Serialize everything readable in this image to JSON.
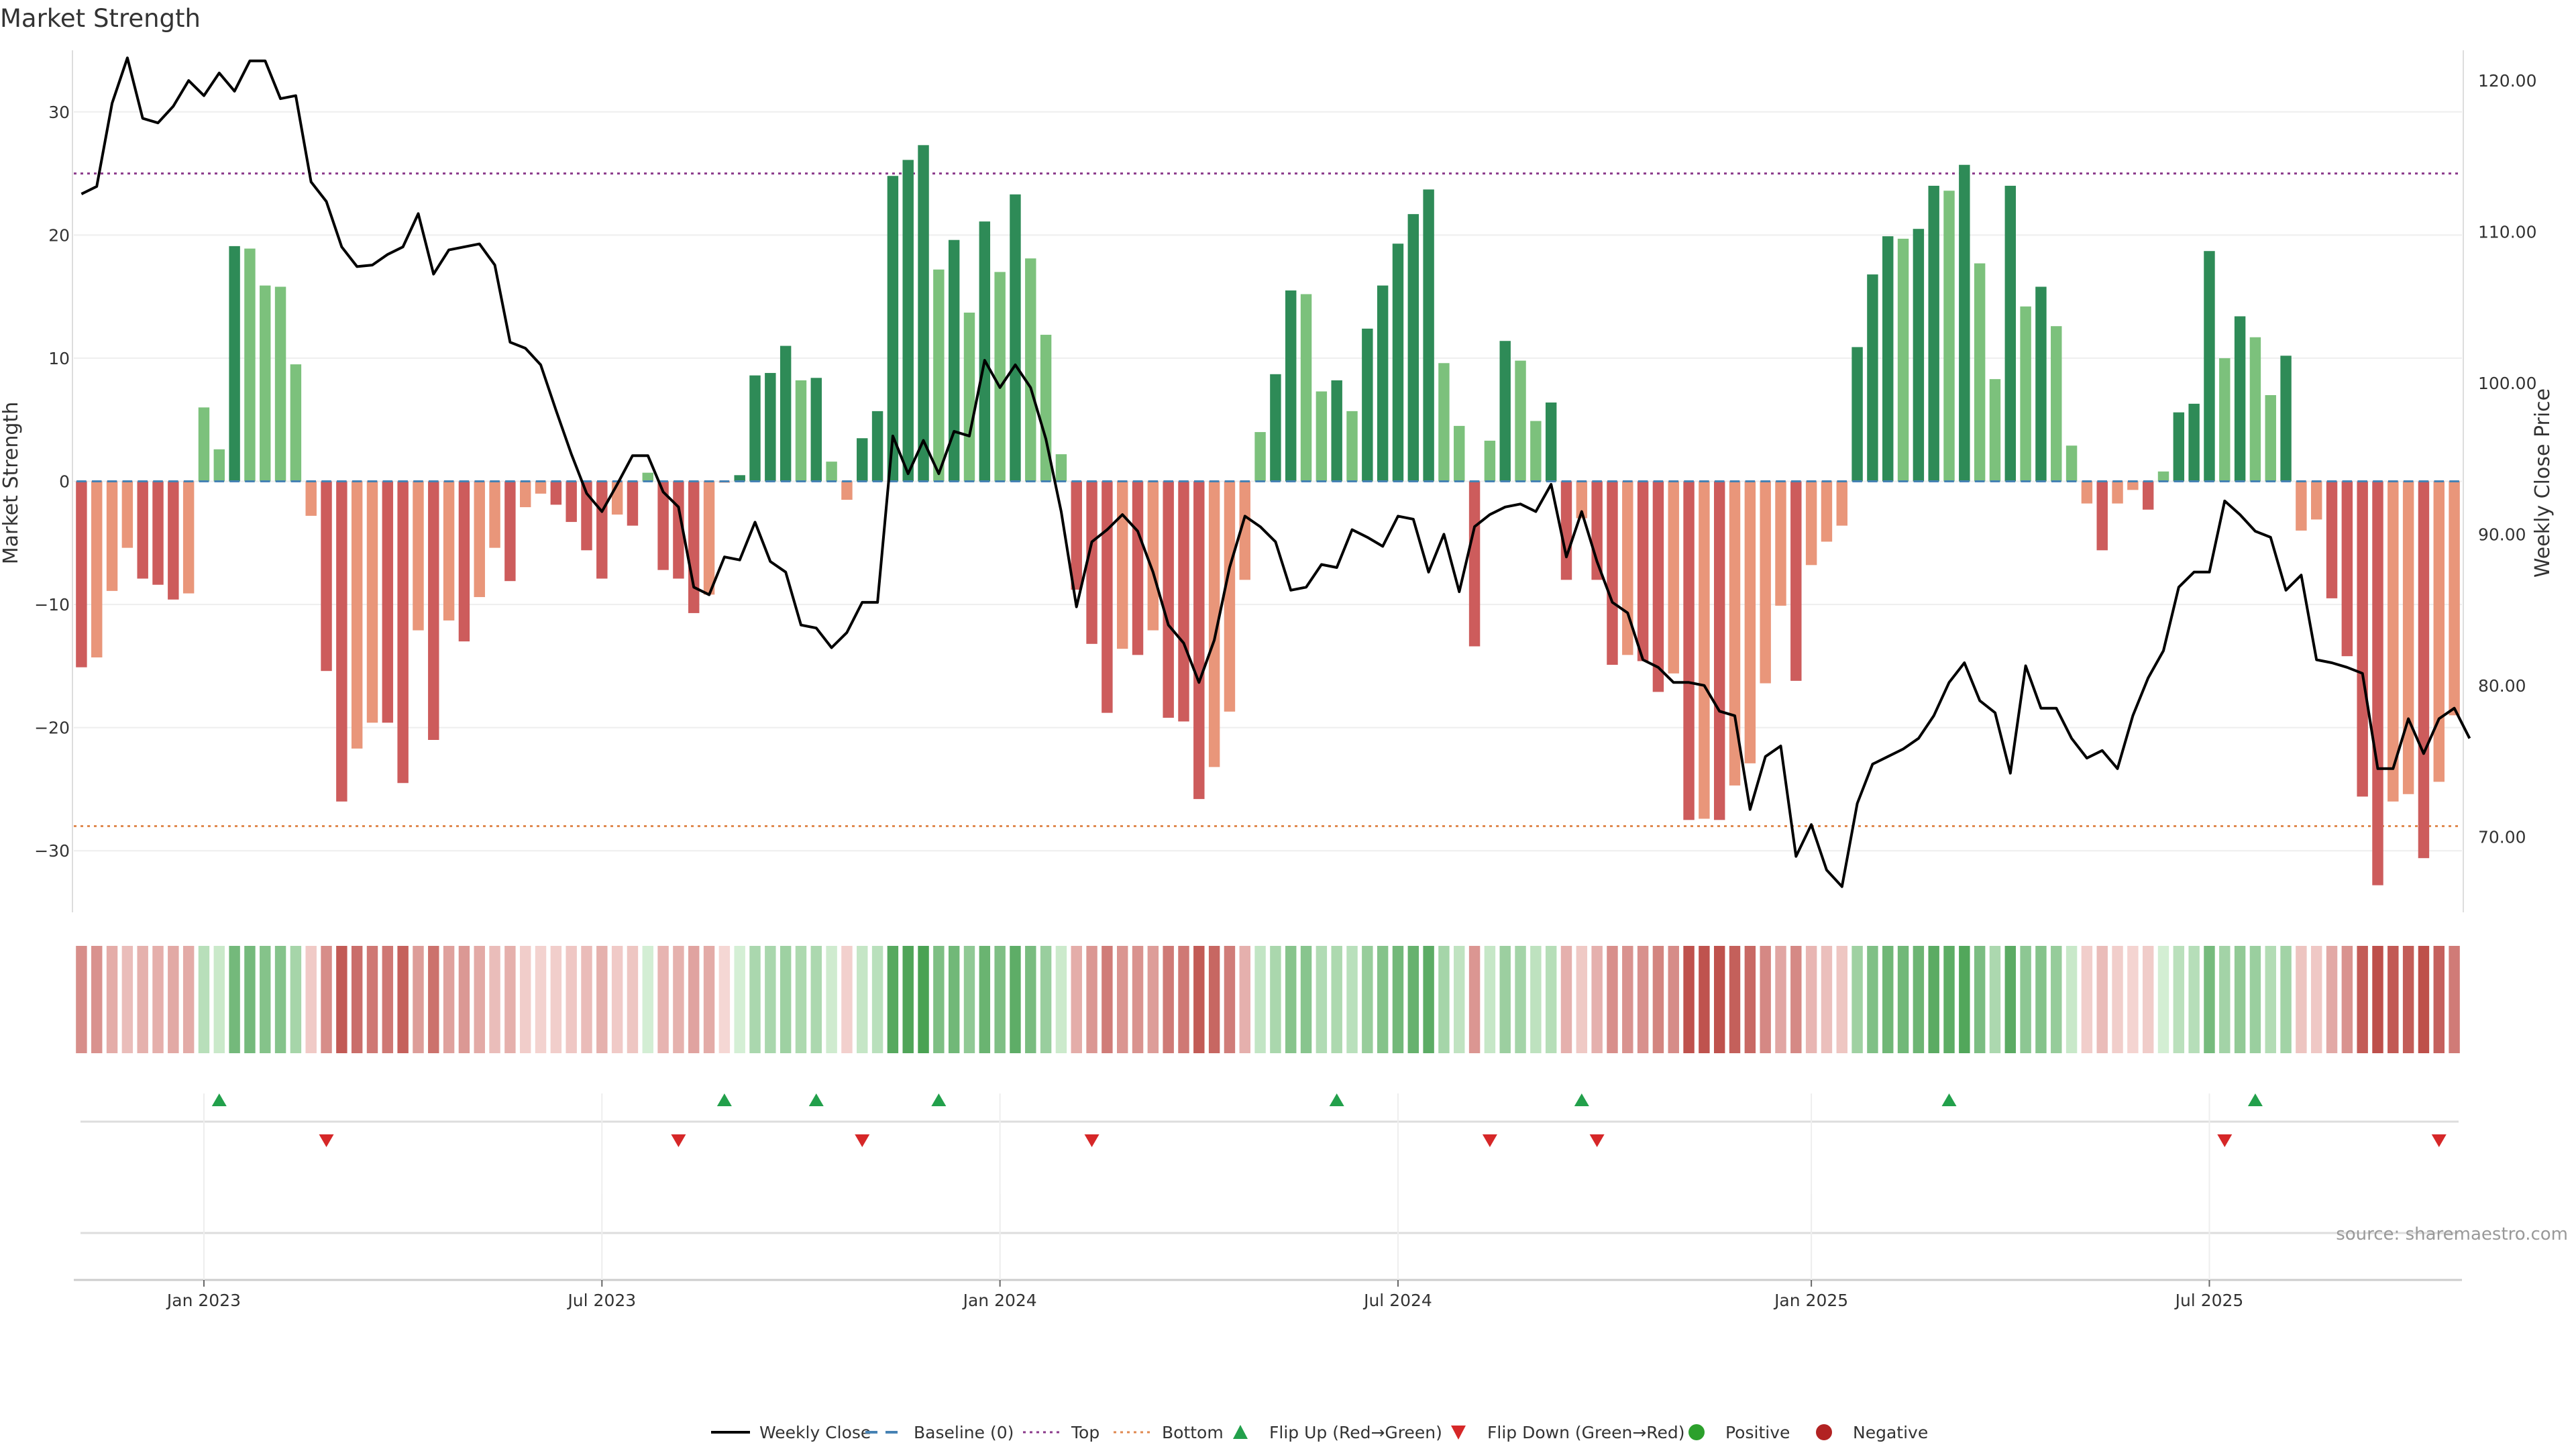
{
  "chart_data": {
    "type": "bar",
    "title": "Market Strength",
    "ylabel": "Market Strength",
    "y2label": "Weekly Close Price",
    "ylim": [
      -35,
      35
    ],
    "y2lim": [
      65,
      122
    ],
    "yticks": [
      30,
      20,
      10,
      0,
      -10,
      -20,
      -30
    ],
    "ytick_labels": [
      "30",
      "20",
      "10",
      "0",
      "−10",
      "−20",
      "−30"
    ],
    "y2ticks": [
      120,
      110,
      100,
      90,
      80,
      70
    ],
    "y2tick_labels": [
      "120.00",
      "110.00",
      "100.00",
      "90.00",
      "80.00",
      "70.00"
    ],
    "top_threshold": 25,
    "bottom_threshold": -28,
    "x_start": "2022-11-07",
    "x_end": "2025-10-27",
    "x_ticks": [
      {
        "label": "Jan 2023",
        "date": "2023-01-02"
      },
      {
        "label": "Jul 2023",
        "date": "2023-07-03"
      },
      {
        "label": "Jan 2024",
        "date": "2024-01-01"
      },
      {
        "label": "Jul 2024",
        "date": "2024-07-01"
      },
      {
        "label": "Jan 2025",
        "date": "2025-01-06"
      },
      {
        "label": "Jul 2025",
        "date": "2025-07-07"
      }
    ],
    "strength": [
      -15.1,
      -14.3,
      -8.9,
      -5.4,
      -7.9,
      -8.4,
      -9.6,
      -9.1,
      6,
      2.6,
      19.1,
      18.9,
      15.9,
      15.8,
      9.5,
      -2.8,
      -15.4,
      -26,
      -21.7,
      -19.6,
      -19.6,
      -24.5,
      -12.1,
      -21,
      -11.3,
      -13,
      -9.4,
      -5.4,
      -8.1,
      -2.1,
      -1,
      -1.9,
      -3.3,
      -5.6,
      -7.9,
      -2.7,
      -3.6,
      0.7,
      -7.2,
      -7.9,
      -10.7,
      -9.2,
      -0.1,
      0.5,
      8.6,
      8.8,
      11,
      8.2,
      8.4,
      1.6,
      -1.5,
      3.5,
      5.7,
      24.8,
      26.1,
      27.3,
      17.2,
      19.6,
      13.7,
      21.1,
      17,
      23.3,
      18.1,
      11.9,
      2.2,
      -8.8,
      -13.2,
      -18.8,
      -13.6,
      -14.1,
      -12.1,
      -19.2,
      -19.5,
      -25.8,
      -23.2,
      -18.7,
      -8,
      4,
      8.7,
      15.5,
      15.2,
      7.3,
      8.2,
      5.7,
      12.4,
      15.9,
      19.3,
      21.7,
      23.7,
      9.6,
      4.5,
      -13.4,
      3.3,
      11.4,
      9.8,
      4.9,
      6.4,
      -8,
      -3,
      -8,
      -14.9,
      -14.1,
      -14.6,
      -17.1,
      -15.6,
      -27.5,
      -27.4,
      -27.5,
      -24.7,
      -22.9,
      -16.4,
      -10.1,
      -16.2,
      -6.8,
      -4.9,
      -3.6,
      10.9,
      16.8,
      19.9,
      19.7,
      20.5,
      24,
      23.6,
      25.7,
      17.7,
      8.3,
      24,
      14.2,
      15.8,
      12.6,
      2.9,
      -1.8,
      -5.6,
      -1.8,
      -0.7,
      -2.3,
      0.8,
      5.6,
      6.3,
      18.7,
      10,
      13.4,
      11.7,
      7,
      10.2,
      -4,
      -3.1,
      -9.5,
      -14.2,
      -25.6,
      -32.8,
      -26,
      -25.4,
      -30.6,
      -24.4,
      -19
    ],
    "close": [
      112.5,
      113,
      118.5,
      121.5,
      117.5,
      117.2,
      118.3,
      120,
      119,
      120.5,
      119.3,
      121.3,
      121.3,
      118.8,
      119,
      113.3,
      112,
      109,
      107.7,
      107.8,
      108.5,
      109,
      111.2,
      107.2,
      108.8,
      109,
      109.2,
      107.8,
      102.7,
      102.3,
      101.2,
      98.2,
      95.3,
      92.7,
      91.5,
      93.3,
      95.2,
      95.2,
      92.8,
      91.8,
      86.5,
      86,
      88.5,
      88.3,
      90.8,
      88.2,
      87.5,
      84,
      83.8,
      82.5,
      83.5,
      85.5,
      85.5,
      96.5,
      94,
      96.2,
      94,
      96.8,
      96.5,
      101.5,
      99.7,
      101.2,
      99.7,
      96.3,
      91.5,
      85.2,
      89.5,
      90.3,
      91.3,
      90.2,
      87.5,
      84,
      82.8,
      80.2,
      83,
      87.8,
      91.2,
      90.5,
      89.5,
      86.3,
      86.5,
      88,
      87.8,
      90.3,
      89.8,
      89.2,
      91.2,
      91,
      87.5,
      90,
      86.2,
      90.5,
      91.3,
      91.8,
      92,
      91.5,
      93.3,
      88.5,
      91.5,
      88.2,
      85.5,
      84.8,
      81.7,
      81.2,
      80.2,
      80.2,
      80,
      78.3,
      78,
      71.8,
      75.3,
      76,
      68.7,
      70.8,
      67.8,
      66.7,
      72.2,
      74.8,
      75.3,
      75.8,
      76.5,
      78,
      80.2,
      81.5,
      79,
      78.2,
      74.2,
      81.3,
      78.5,
      78.5,
      76.5,
      75.2,
      75.7,
      74.5,
      78,
      80.5,
      82.3,
      86.5,
      87.5,
      87.5,
      92.2,
      91.3,
      90.2,
      89.8,
      86.3,
      87.3,
      81.7,
      81.5,
      81.2,
      80.8,
      74.5,
      74.5,
      77.8,
      75.5,
      77.8,
      78.5,
      76.5
    ],
    "flip_up_indices": [
      9,
      42,
      48,
      56,
      82,
      98,
      122,
      142
    ],
    "flip_down_indices": [
      16,
      39,
      51,
      66,
      92,
      99,
      140,
      154
    ],
    "colors": {
      "positive_strong": "#2e8b57",
      "positive_light": "#7cc17c",
      "negative_strong": "#cd5c5c",
      "negative_light": "#e9967a",
      "close_line": "#000000",
      "baseline": "#4682b4",
      "top": "#8b3a8b",
      "bottom": "#e08a50",
      "flip_up": "#22a04b",
      "flip_down": "#d62728",
      "legend_positive": "#2ca02c",
      "legend_negative": "#b22222"
    },
    "legend": [
      {
        "label": "Weekly Close",
        "key": "close"
      },
      {
        "label": "Baseline (0)",
        "key": "baseline"
      },
      {
        "label": "Top",
        "key": "top"
      },
      {
        "label": "Bottom",
        "key": "bottom"
      },
      {
        "label": "Flip Up (Red→Green)",
        "key": "flip_up"
      },
      {
        "label": "Flip Down (Green→Red)",
        "key": "flip_down"
      },
      {
        "label": "Positive",
        "key": "positive"
      },
      {
        "label": "Negative",
        "key": "negative"
      }
    ],
    "source_note": "source: sharemaestro.com"
  }
}
